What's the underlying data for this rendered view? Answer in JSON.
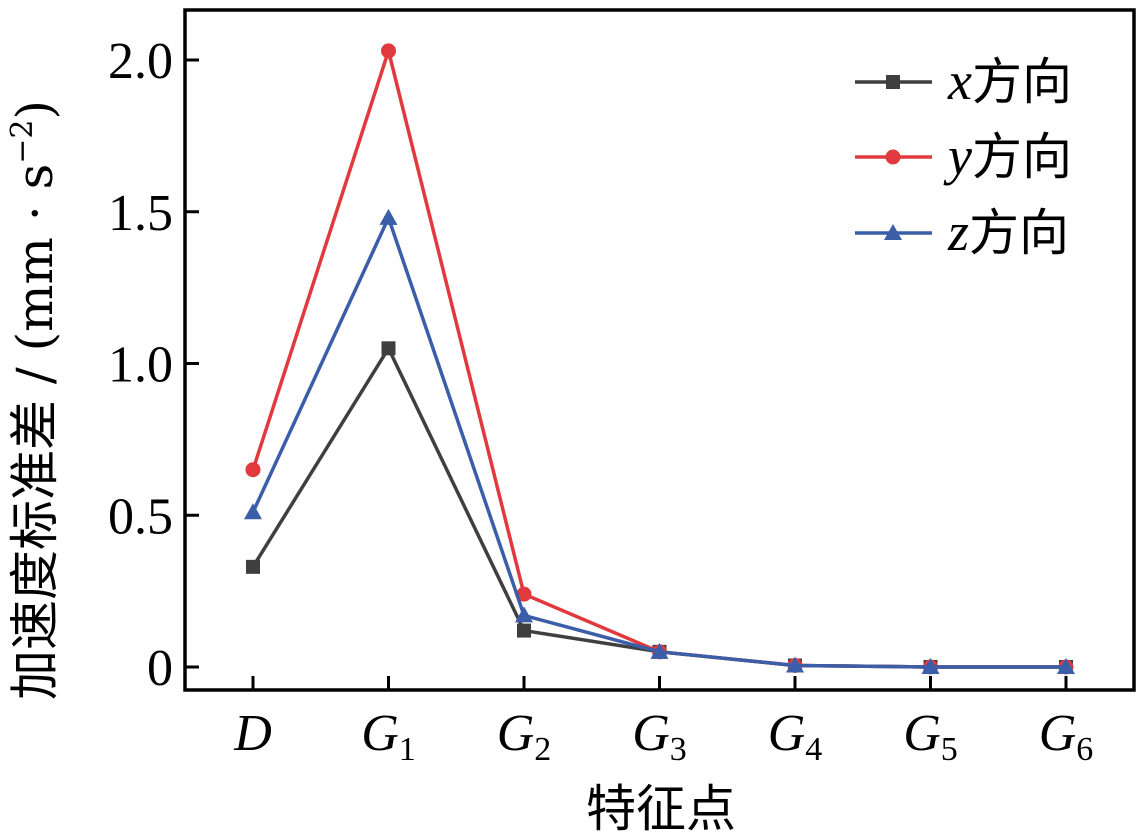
{
  "chart_data": {
    "type": "line",
    "categories": [
      {
        "main": "D",
        "sub": ""
      },
      {
        "main": "G",
        "sub": "1"
      },
      {
        "main": "G",
        "sub": "2"
      },
      {
        "main": "G",
        "sub": "3"
      },
      {
        "main": "G",
        "sub": "4"
      },
      {
        "main": "G",
        "sub": "5"
      },
      {
        "main": "G",
        "sub": "6"
      }
    ],
    "series": [
      {
        "name_var": "x",
        "name_text": "方向",
        "color": "#3f3f3f",
        "marker": "square",
        "values": [
          0.33,
          1.05,
          0.12,
          0.05,
          0.005,
          0.0,
          0.0
        ]
      },
      {
        "name_var": "y",
        "name_text": "方向",
        "color": "#e0393e",
        "marker": "circle",
        "values": [
          0.65,
          2.03,
          0.24,
          0.05,
          0.005,
          0.0,
          0.0
        ]
      },
      {
        "name_var": "z",
        "name_text": "方向",
        "color": "#3a5ea8",
        "marker": "triangle",
        "values": [
          0.51,
          1.48,
          0.17,
          0.05,
          0.005,
          0.0,
          0.0
        ]
      }
    ],
    "yticks": [
      "0",
      "0.5",
      "1.0",
      "1.5",
      "2.0"
    ],
    "ytick_values": [
      0,
      0.5,
      1.0,
      1.5,
      2.0
    ],
    "ylim": [
      -0.08,
      2.1
    ],
    "xlabel": "特征点",
    "ylabel": "加速度标准差 / (mm · s",
    "ylabel_sup": "−2",
    "ylabel_close": ")",
    "legend_position": "top-right",
    "grid": false
  }
}
